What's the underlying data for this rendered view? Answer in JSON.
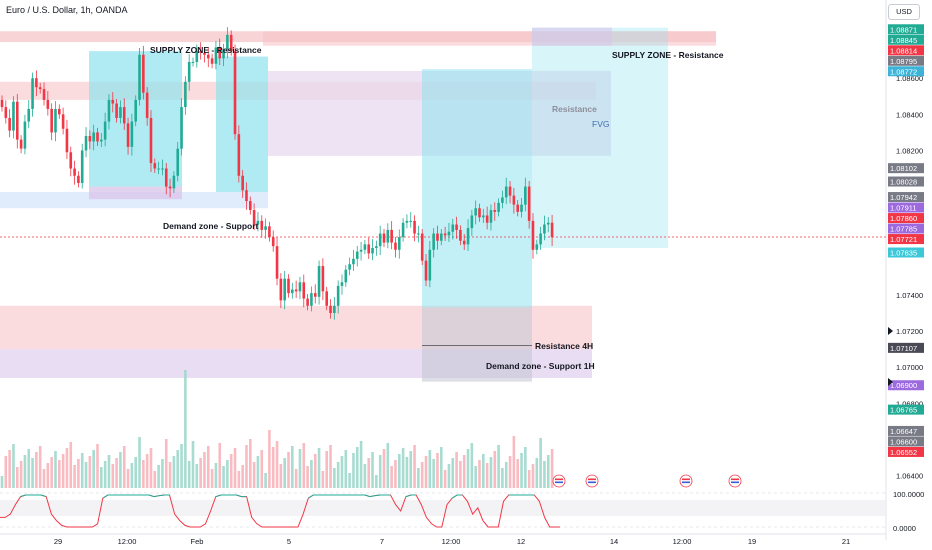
{
  "header": {
    "symbol_title": "Euro / U.S. Dollar, 1h, OANDA",
    "currency": "USD"
  },
  "zone_labels": {
    "supply_left": "SUPPLY ZONE - Resistance",
    "supply_right": "SUPPLY ZONE - Resistance",
    "resistance": "Resistance",
    "fvg": "FVG",
    "demand_left": "Demand zone - Support",
    "resistance_4h": "Resistance 4H",
    "demand_1h": "Demand zone - Support 1H"
  },
  "colors": {
    "up": "#22ab94",
    "down": "#f23645",
    "supply_zone": "#f6c5c8",
    "demand_zone": "#dbe9fb",
    "fvg_zone": "#e7d9ef",
    "projection": "#8fe3ee",
    "oscillator": "#f23645",
    "oscillator_up": "#22ab94"
  },
  "chart_data": {
    "type": "candlestick",
    "title": "Euro / U.S. Dollar, 1h, OANDA",
    "y_axis": {
      "ticks": [
        "1.08600",
        "1.08400",
        "1.08200",
        "1.07400",
        "1.07200",
        "1.07000",
        "1.06800",
        "1.06400"
      ],
      "range": [
        1.0632,
        1.0895
      ],
      "price_tags": [
        {
          "value": "1.08871",
          "color": "#22ab94"
        },
        {
          "value": "1.08845",
          "color": "#22ab94"
        },
        {
          "value": "1.08814",
          "color": "#f23645"
        },
        {
          "value": "1.08795",
          "color": "#787b86"
        },
        {
          "value": "1.08772",
          "color": "#3cb4d8"
        },
        {
          "value": "1.08102",
          "color": "#787b86"
        },
        {
          "value": "1.08028",
          "color": "#787b86"
        },
        {
          "value": "1.07942",
          "color": "#787b86"
        },
        {
          "value": "1.07911",
          "color": "#9c6ade"
        },
        {
          "value": "1.07860",
          "color": "#f23645"
        },
        {
          "value": "1.07785",
          "color": "#9c6ade"
        },
        {
          "value": "1.07721",
          "color": "#f23645"
        },
        {
          "value": "1.07635",
          "color": "#3cc8d8"
        },
        {
          "value": "1.07107",
          "color": "#4a4a56"
        },
        {
          "value": "1.06900",
          "color": "#9c6ade"
        },
        {
          "value": "1.06765",
          "color": "#22ab94"
        },
        {
          "value": "1.06647",
          "color": "#787b86"
        },
        {
          "value": "1.06600",
          "color": "#787b86"
        },
        {
          "value": "1.06552",
          "color": "#f23645"
        }
      ]
    },
    "x_axis": {
      "ticks": [
        "29",
        "12:00",
        "Feb",
        "5",
        "7",
        "12:00",
        "12",
        "14",
        "12:00",
        "19",
        "21"
      ]
    },
    "zones": [
      {
        "label": "SUPPLY ZONE - Resistance",
        "price_range": [
          1.0878,
          1.0886
        ],
        "kind": "supply"
      },
      {
        "label": "Resistance",
        "price_range": [
          1.0848,
          1.0858
        ],
        "kind": "resistance"
      },
      {
        "label": "FVG",
        "price_range": [
          1.0817,
          1.0859
        ],
        "kind": "fvg"
      },
      {
        "label": "Demand zone - Support",
        "price_range": [
          1.079,
          1.0797
        ],
        "kind": "demand"
      },
      {
        "label": "Resistance 4H",
        "price_range": [
          1.071,
          1.0733
        ],
        "kind": "resistance"
      },
      {
        "label": "Demand zone - Support 1H",
        "price_range": [
          1.069,
          1.071
        ],
        "kind": "demand"
      }
    ],
    "series": [
      {
        "name": "",
        "close": [
          1.0844,
          1.0838,
          1.0831,
          1.0847,
          1.0826,
          1.0821,
          1.0836,
          1.0843,
          1.086,
          1.0855,
          1.0854,
          1.0848,
          1.0843,
          1.083,
          1.0843,
          1.084,
          1.0832,
          1.0819,
          1.081,
          1.0806,
          1.0802,
          1.082,
          1.0828,
          1.0825,
          1.083,
          1.0825,
          1.0826,
          1.0836,
          1.0848,
          1.0846,
          1.0838,
          1.0844,
          1.0835,
          1.0822,
          1.0836,
          1.0848,
          1.0873,
          1.0852,
          1.0838,
          1.0813,
          1.081,
          1.081,
          1.081,
          1.08,
          1.0799,
          1.0806,
          1.0821,
          1.0844,
          1.0858,
          1.0869,
          1.0869,
          1.0875,
          1.0874,
          1.0873,
          1.0871,
          1.0868,
          1.0877,
          1.0871,
          1.0876,
          1.0884,
          1.0875,
          1.0829,
          1.0806,
          1.0798,
          1.0792,
          1.0787,
          1.0779,
          1.0781,
          1.0776,
          1.0778,
          1.0772,
          1.0767,
          1.0749,
          1.0737,
          1.0749,
          1.0741,
          1.0743,
          1.0742,
          1.0747,
          1.0738,
          1.0734,
          1.0741,
          1.0739,
          1.0756,
          1.0742,
          1.0734,
          1.073,
          1.0734,
          1.0745,
          1.0747,
          1.0754,
          1.0757,
          1.076,
          1.0764,
          1.0765,
          1.0768,
          1.0763,
          1.0766,
          1.0767,
          1.0774,
          1.0769,
          1.0776,
          1.0769,
          1.0765,
          1.0772,
          1.078,
          1.0781,
          1.0781,
          1.0774,
          1.0774,
          1.0759,
          1.0748,
          1.0765,
          1.0774,
          1.077,
          1.0774,
          1.0773,
          1.0775,
          1.0779,
          1.0776,
          1.077,
          1.0768,
          1.0777,
          1.0784,
          1.0788,
          1.0783,
          1.0784,
          1.078,
          1.0787,
          1.0786,
          1.0791,
          1.0794,
          1.08,
          1.0795,
          1.079,
          1.0786,
          1.079,
          1.08,
          1.0781,
          1.0765,
          1.0768,
          1.0774,
          1.0779,
          1.078,
          1.0772
        ],
        "up_color": "#22ab94",
        "down_color": "#f23645"
      }
    ],
    "current_price": 1.07721,
    "indicators": {
      "oscillator_labels": [
        "100.0000",
        "0.0000"
      ],
      "oscillator_values": [
        0.3,
        0.3,
        0.4,
        0.7,
        0.95,
        1,
        1,
        1,
        1,
        0.95,
        0.4,
        0.2,
        0.05,
        0,
        0,
        0,
        0,
        0,
        0,
        0.1,
        0.9,
        1,
        1,
        1,
        1,
        1,
        1,
        1,
        1,
        1,
        0.95,
        0.98,
        1,
        1,
        0.4,
        0.2,
        0.05,
        0,
        0,
        0,
        0.1,
        0.5,
        0.95,
        1,
        1,
        1,
        1,
        0.95,
        0.95,
        0.3,
        0.1,
        0,
        0,
        0,
        0,
        0,
        0,
        0,
        0,
        0.4,
        0.9,
        1,
        1,
        1,
        1,
        1,
        1,
        1,
        1,
        1,
        1,
        1,
        0.95,
        0.98,
        1,
        1,
        1,
        0.7,
        0.5,
        0.95,
        1,
        1,
        0.7,
        0.3,
        0.1,
        0,
        0,
        0.7,
        0.9,
        1,
        1,
        0.8,
        0.4,
        0.6,
        0.2,
        0,
        0,
        0,
        0.8,
        1,
        1,
        1,
        1,
        1,
        1,
        0.8,
        0.3,
        0,
        0,
        0
      ]
    }
  }
}
